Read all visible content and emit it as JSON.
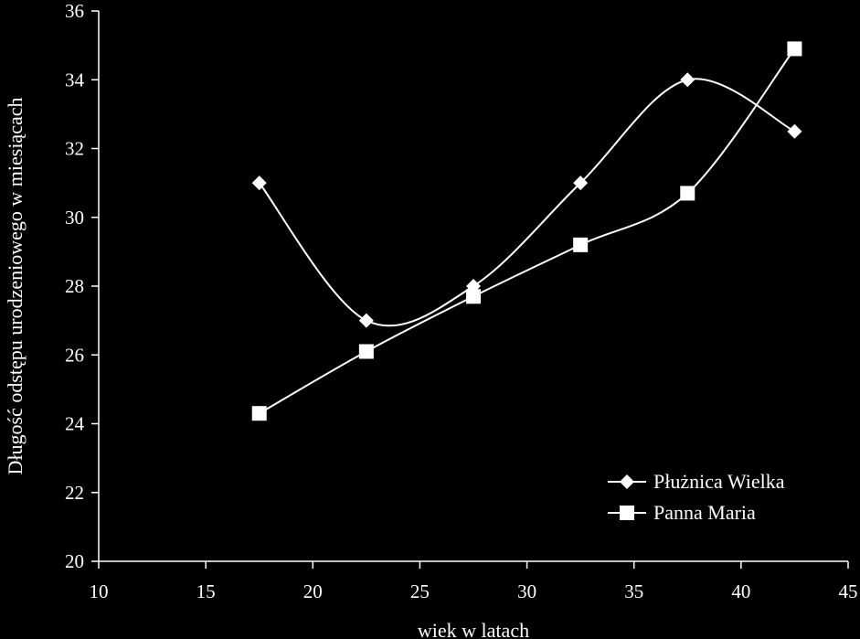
{
  "chart_data": {
    "type": "line",
    "title": "",
    "xlabel": "wiek w latach",
    "ylabel": "Długość odstępu urodzeniowego w miesiącach",
    "xlim": [
      10,
      45
    ],
    "ylim": [
      20,
      36
    ],
    "x_ticks": [
      10,
      15,
      20,
      25,
      30,
      35,
      40,
      45
    ],
    "y_ticks": [
      20,
      22,
      24,
      26,
      28,
      30,
      32,
      34,
      36
    ],
    "x_tick_labels": [
      "10",
      "15",
      "20",
      "25",
      "30",
      "35",
      "40",
      "45"
    ],
    "y_tick_labels": [
      "20",
      "22",
      "24",
      "26",
      "28",
      "30",
      "32",
      "34",
      "36"
    ],
    "grid": false,
    "legend_position": "bottom-right",
    "smooth": true,
    "series": [
      {
        "name": "Płużnica Wielka",
        "marker": "diamond",
        "color": "#ffffff",
        "x": [
          17.5,
          22.5,
          27.5,
          32.5,
          37.5,
          42.5
        ],
        "y": [
          31,
          27,
          28,
          31,
          34,
          32.5
        ]
      },
      {
        "name": "Panna Maria",
        "marker": "square",
        "color": "#ffffff",
        "x": [
          17.5,
          22.5,
          27.5,
          32.5,
          37.5,
          42.5
        ],
        "y": [
          24.3,
          26.1,
          27.7,
          29.2,
          30.7,
          34.9
        ]
      }
    ]
  }
}
